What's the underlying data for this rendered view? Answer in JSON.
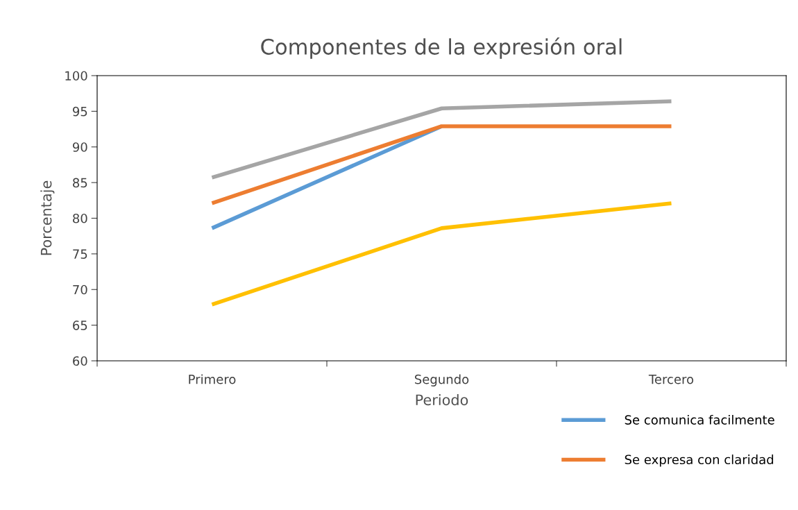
{
  "chart_data": {
    "type": "line",
    "title": "Componentes de la expresión oral",
    "xlabel": "Periodo",
    "ylabel": "Porcentaje",
    "categories": [
      "Primero",
      "Segundo",
      "Tercero"
    ],
    "series": [
      {
        "name": "Se comunica facilmente",
        "color": "#5b9bd5",
        "values": [
          78.6,
          92.9,
          null
        ]
      },
      {
        "name": "Se expresa con claridad",
        "color": "#ed7d31",
        "values": [
          82.1,
          92.9,
          92.9
        ]
      },
      {
        "color": "#a5a5a5",
        "values": [
          85.7,
          95.4,
          96.4
        ]
      },
      {
        "color": "#ffc000",
        "values": [
          67.9,
          78.6,
          82.1
        ]
      }
    ],
    "ylim": [
      60,
      100
    ],
    "yticks": [
      60,
      65,
      70,
      75,
      80,
      85,
      90,
      95,
      100
    ],
    "grid": false,
    "legend": "bottom right",
    "marker": "none",
    "line_style": "solid"
  }
}
